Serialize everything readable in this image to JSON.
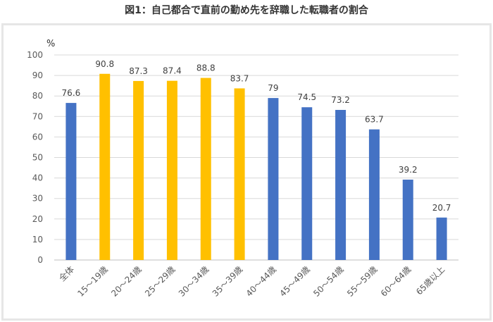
{
  "figure_title": "図1：自己都合で直前の勤め先を辞職した転職者の割合",
  "chart_data": {
    "type": "bar",
    "title": "図1：自己都合で直前の勤め先を辞職した転職者の割合",
    "ylabel": "%",
    "xlabel": "",
    "ylim": [
      0,
      100
    ],
    "yticks": [
      0,
      10,
      20,
      30,
      40,
      50,
      60,
      70,
      80,
      90,
      100
    ],
    "grid": true,
    "categories": [
      "全体",
      "15～19歳",
      "20～24歳",
      "25～29歳",
      "30～34歳",
      "35～39歳",
      "40～44歳",
      "45～49歳",
      "50～54歳",
      "55～59歳",
      "60～64歳",
      "65歳以上"
    ],
    "values": [
      76.6,
      90.8,
      87.3,
      87.4,
      88.8,
      83.7,
      79,
      74.5,
      73.2,
      63.7,
      39.2,
      20.7
    ],
    "data_labels": [
      "76.6",
      "90.8",
      "87.3",
      "87.4",
      "88.8",
      "83.7",
      "79",
      "74.5",
      "73.2",
      "63.7",
      "39.2",
      "20.7"
    ],
    "colors": [
      "#4472C4",
      "#FFC000",
      "#FFC000",
      "#FFC000",
      "#FFC000",
      "#FFC000",
      "#4472C4",
      "#4472C4",
      "#4472C4",
      "#4472C4",
      "#4472C4",
      "#4472C4"
    ]
  }
}
